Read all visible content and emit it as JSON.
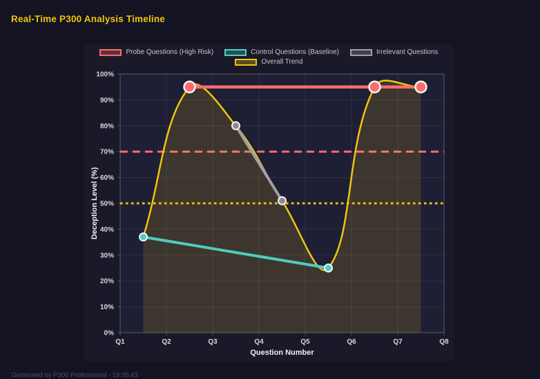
{
  "page": {
    "title": "Real-Time P300 Analysis Timeline",
    "footer": "Generated by P300 Professional - 19:05:43"
  },
  "colors": {
    "page_bg": "#131321",
    "panel_bg": "#191929",
    "plot_bg": "#1e1e34",
    "grid": "rgba(255,255,255,0.08)",
    "plot_border": "rgba(255,255,255,0.22)",
    "tick_label": "#d8d8e0",
    "axis_title": "#f0f0f5",
    "probe_red": "#ff6b6b",
    "control_teal": "#4ecdc4",
    "irrelevant_gray": "#a0a0a6",
    "trend_yellow": "#f1c40f",
    "point_border": "#f5f5f5"
  },
  "chart_data": {
    "type": "line",
    "title": "Real-Time P300 Analysis Timeline",
    "xlabel": "Question Number",
    "ylabel": "Deception Level (%)",
    "xlim": [
      1,
      8
    ],
    "ylim": [
      0,
      100
    ],
    "x_tick_values": [
      1,
      2,
      3,
      4,
      5,
      6,
      7,
      8
    ],
    "x_tick_labels": [
      "Q1",
      "Q2",
      "Q3",
      "Q4",
      "Q5",
      "Q6",
      "Q7",
      "Q8"
    ],
    "y_tick_values": [
      0,
      10,
      20,
      30,
      40,
      50,
      60,
      70,
      80,
      90,
      100
    ],
    "y_tick_labels": [
      "0%",
      "10%",
      "20%",
      "30%",
      "40%",
      "50%",
      "60%",
      "70%",
      "80%",
      "90%",
      "100%"
    ],
    "grid": true,
    "legend_position": "top",
    "legend_rows": [
      [
        0,
        1,
        2
      ],
      [
        3
      ]
    ],
    "series": [
      {
        "name": "Probe Questions (High Risk)",
        "color": "#ff6b6b",
        "line_width": 4.5,
        "point_radius": 8,
        "point_border_width": 2.5,
        "smooth": false,
        "points": [
          {
            "x": 2.5,
            "y": 95
          },
          {
            "x": 6.5,
            "y": 95
          },
          {
            "x": 7.5,
            "y": 95
          }
        ]
      },
      {
        "name": "Control Questions (Baseline)",
        "color": "#4ecdc4",
        "line_width": 4,
        "point_radius": 5.5,
        "point_border_width": 2,
        "smooth": false,
        "points": [
          {
            "x": 1.5,
            "y": 37
          },
          {
            "x": 5.5,
            "y": 25
          }
        ]
      },
      {
        "name": "Irrelevant Questions",
        "color": "#a0a0a6",
        "point_color": "#8b8b93",
        "line_width": 4,
        "point_radius": 5.5,
        "point_border_width": 2,
        "smooth": false,
        "points": [
          {
            "x": 3.5,
            "y": 80
          },
          {
            "x": 4.5,
            "y": 51
          }
        ]
      },
      {
        "name": "Overall Trend",
        "color": "#f1c40f",
        "line_width": 2.5,
        "point_radius": 0,
        "smooth": true,
        "tension": 0.4,
        "fill": "rgba(241,196,15,0.15)",
        "points": [
          {
            "x": 1.5,
            "y": 37
          },
          {
            "x": 2.5,
            "y": 95
          },
          {
            "x": 3.5,
            "y": 80
          },
          {
            "x": 4.5,
            "y": 51
          },
          {
            "x": 5.5,
            "y": 25
          },
          {
            "x": 6.5,
            "y": 95
          },
          {
            "x": 7.5,
            "y": 95
          }
        ]
      }
    ],
    "thresholds": [
      {
        "value": 70,
        "color": "#ff6b6b",
        "style": "dashed",
        "width": 3
      },
      {
        "value": 50,
        "color": "#f1c40f",
        "style": "dotted",
        "width": 3
      }
    ]
  }
}
